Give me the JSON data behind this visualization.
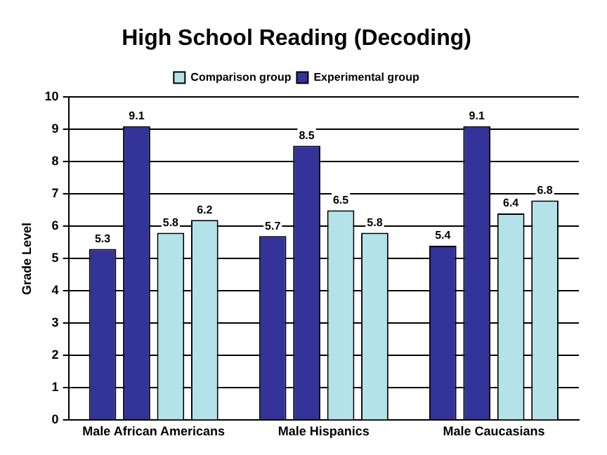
{
  "chart_data": {
    "type": "bar",
    "title": "High School Reading (Decoding)",
    "ylabel": "Grade Level",
    "categories": [
      "Male African Americans",
      "Male Hispanics",
      "Male Caucasians"
    ],
    "series": [
      {
        "color": "#333399",
        "values": [
          5.3,
          5.7,
          5.4
        ]
      },
      {
        "name": "Experimental group",
        "color": "#333399",
        "values": [
          9.1,
          8.5,
          9.1
        ]
      },
      {
        "name": "Comparison group",
        "color": "#b3e3e8",
        "values": [
          5.8,
          6.5,
          6.4
        ]
      },
      {
        "color": "#b3e3e8",
        "values": [
          6.2,
          5.8,
          6.8
        ]
      }
    ],
    "ylim": [
      0,
      10
    ],
    "yticks": [
      0,
      1,
      2,
      3,
      4,
      5,
      6,
      7,
      8,
      9,
      10
    ],
    "grid": "y",
    "legend": "top",
    "data_labels": true
  }
}
